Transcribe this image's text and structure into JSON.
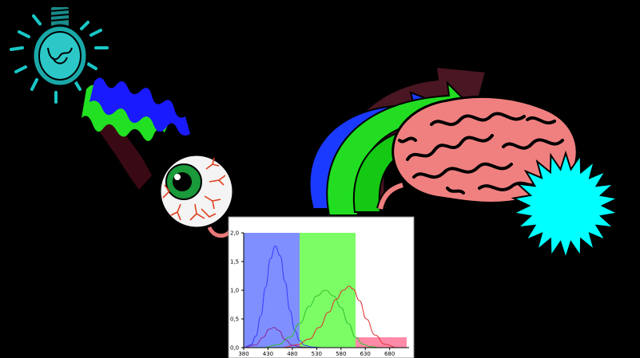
{
  "colors": {
    "background": "#000000",
    "bulb_glow": "#19c8c8",
    "wave_blue": "#1a1aff",
    "wave_green": "#22e022",
    "wave_red": "#3a0a14",
    "eye_iris": "#1a9a3a",
    "brain": "#f08080",
    "starburst": "#00ffff",
    "band_blue": "#7f8fff",
    "band_green": "#7cfd66",
    "band_red": "#ff8aa8",
    "curve_blue": "#3b3bff",
    "curve_green": "#32c032",
    "curve_red": "#e03030",
    "curve_purple": "#8a2a9a"
  },
  "icons": [
    "light-bulb-icon",
    "eye-icon",
    "brain-icon",
    "starburst-icon"
  ],
  "chart_data": {
    "type": "line",
    "title": "",
    "xlabel": "",
    "ylabel": "",
    "x_ticks": [
      "380",
      "430",
      "480",
      "530",
      "580",
      "630",
      "680"
    ],
    "y_ticks": [
      "0,0",
      "0,5",
      "1,0",
      "1,5",
      "2,0"
    ],
    "xlim": [
      380,
      720
    ],
    "ylim": [
      0,
      2.0
    ],
    "bands": [
      {
        "from": 380,
        "to": 495,
        "color": "#7f8fff"
      },
      {
        "from": 495,
        "to": 610,
        "color": "#7cfd66"
      },
      {
        "from": 610,
        "to": 715,
        "color": "#ff8aa8"
      }
    ],
    "red_band_height": 0.18,
    "series": [
      {
        "color": "#3b3bff",
        "values": [
          [
            380,
            0.0
          ],
          [
            395,
            0.05
          ],
          [
            405,
            0.2
          ],
          [
            415,
            0.55
          ],
          [
            425,
            1.05
          ],
          [
            435,
            1.55
          ],
          [
            445,
            1.77
          ],
          [
            455,
            1.6
          ],
          [
            465,
            1.15
          ],
          [
            475,
            0.65
          ],
          [
            485,
            0.3
          ],
          [
            495,
            0.12
          ],
          [
            505,
            0.04
          ],
          [
            520,
            0.01
          ],
          [
            540,
            0.0
          ]
        ]
      },
      {
        "color": "#32c032",
        "values": [
          [
            420,
            0.0
          ],
          [
            450,
            0.05
          ],
          [
            475,
            0.18
          ],
          [
            495,
            0.42
          ],
          [
            515,
            0.72
          ],
          [
            530,
            0.9
          ],
          [
            548,
            1.0
          ],
          [
            565,
            0.9
          ],
          [
            580,
            0.7
          ],
          [
            595,
            0.42
          ],
          [
            610,
            0.18
          ],
          [
            625,
            0.06
          ],
          [
            640,
            0.02
          ],
          [
            660,
            0.0
          ]
        ]
      },
      {
        "color": "#e03030",
        "values": [
          [
            460,
            0.0
          ],
          [
            490,
            0.05
          ],
          [
            515,
            0.15
          ],
          [
            535,
            0.35
          ],
          [
            555,
            0.62
          ],
          [
            570,
            0.84
          ],
          [
            585,
            1.0
          ],
          [
            597,
            1.07
          ],
          [
            605,
            1.02
          ],
          [
            618,
            0.82
          ],
          [
            632,
            0.5
          ],
          [
            650,
            0.22
          ],
          [
            670,
            0.06
          ],
          [
            695,
            0.0
          ]
        ]
      },
      {
        "color": "#8a2a9a",
        "values": [
          [
            380,
            0.0
          ],
          [
            405,
            0.05
          ],
          [
            420,
            0.18
          ],
          [
            432,
            0.32
          ],
          [
            442,
            0.35
          ],
          [
            452,
            0.3
          ],
          [
            465,
            0.14
          ],
          [
            480,
            0.04
          ],
          [
            500,
            0.01
          ],
          [
            520,
            0.0
          ]
        ]
      }
    ]
  }
}
